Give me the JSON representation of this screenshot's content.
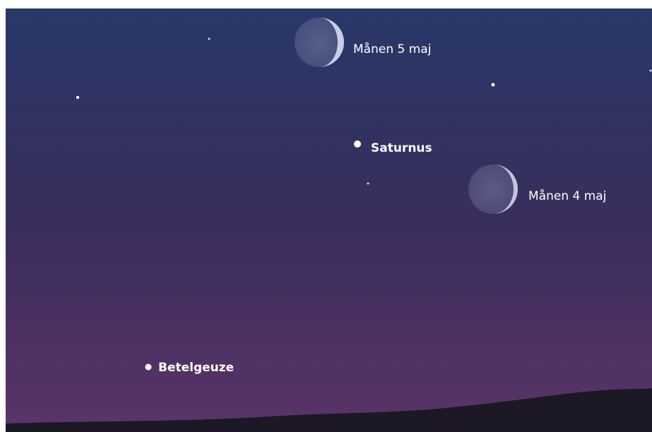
{
  "objects": [
    {
      "label": "Månen 5 maj"
    },
    {
      "label": "Saturnus"
    },
    {
      "label": "Månen 4 maj"
    },
    {
      "label": "Betelgeuze"
    }
  ]
}
